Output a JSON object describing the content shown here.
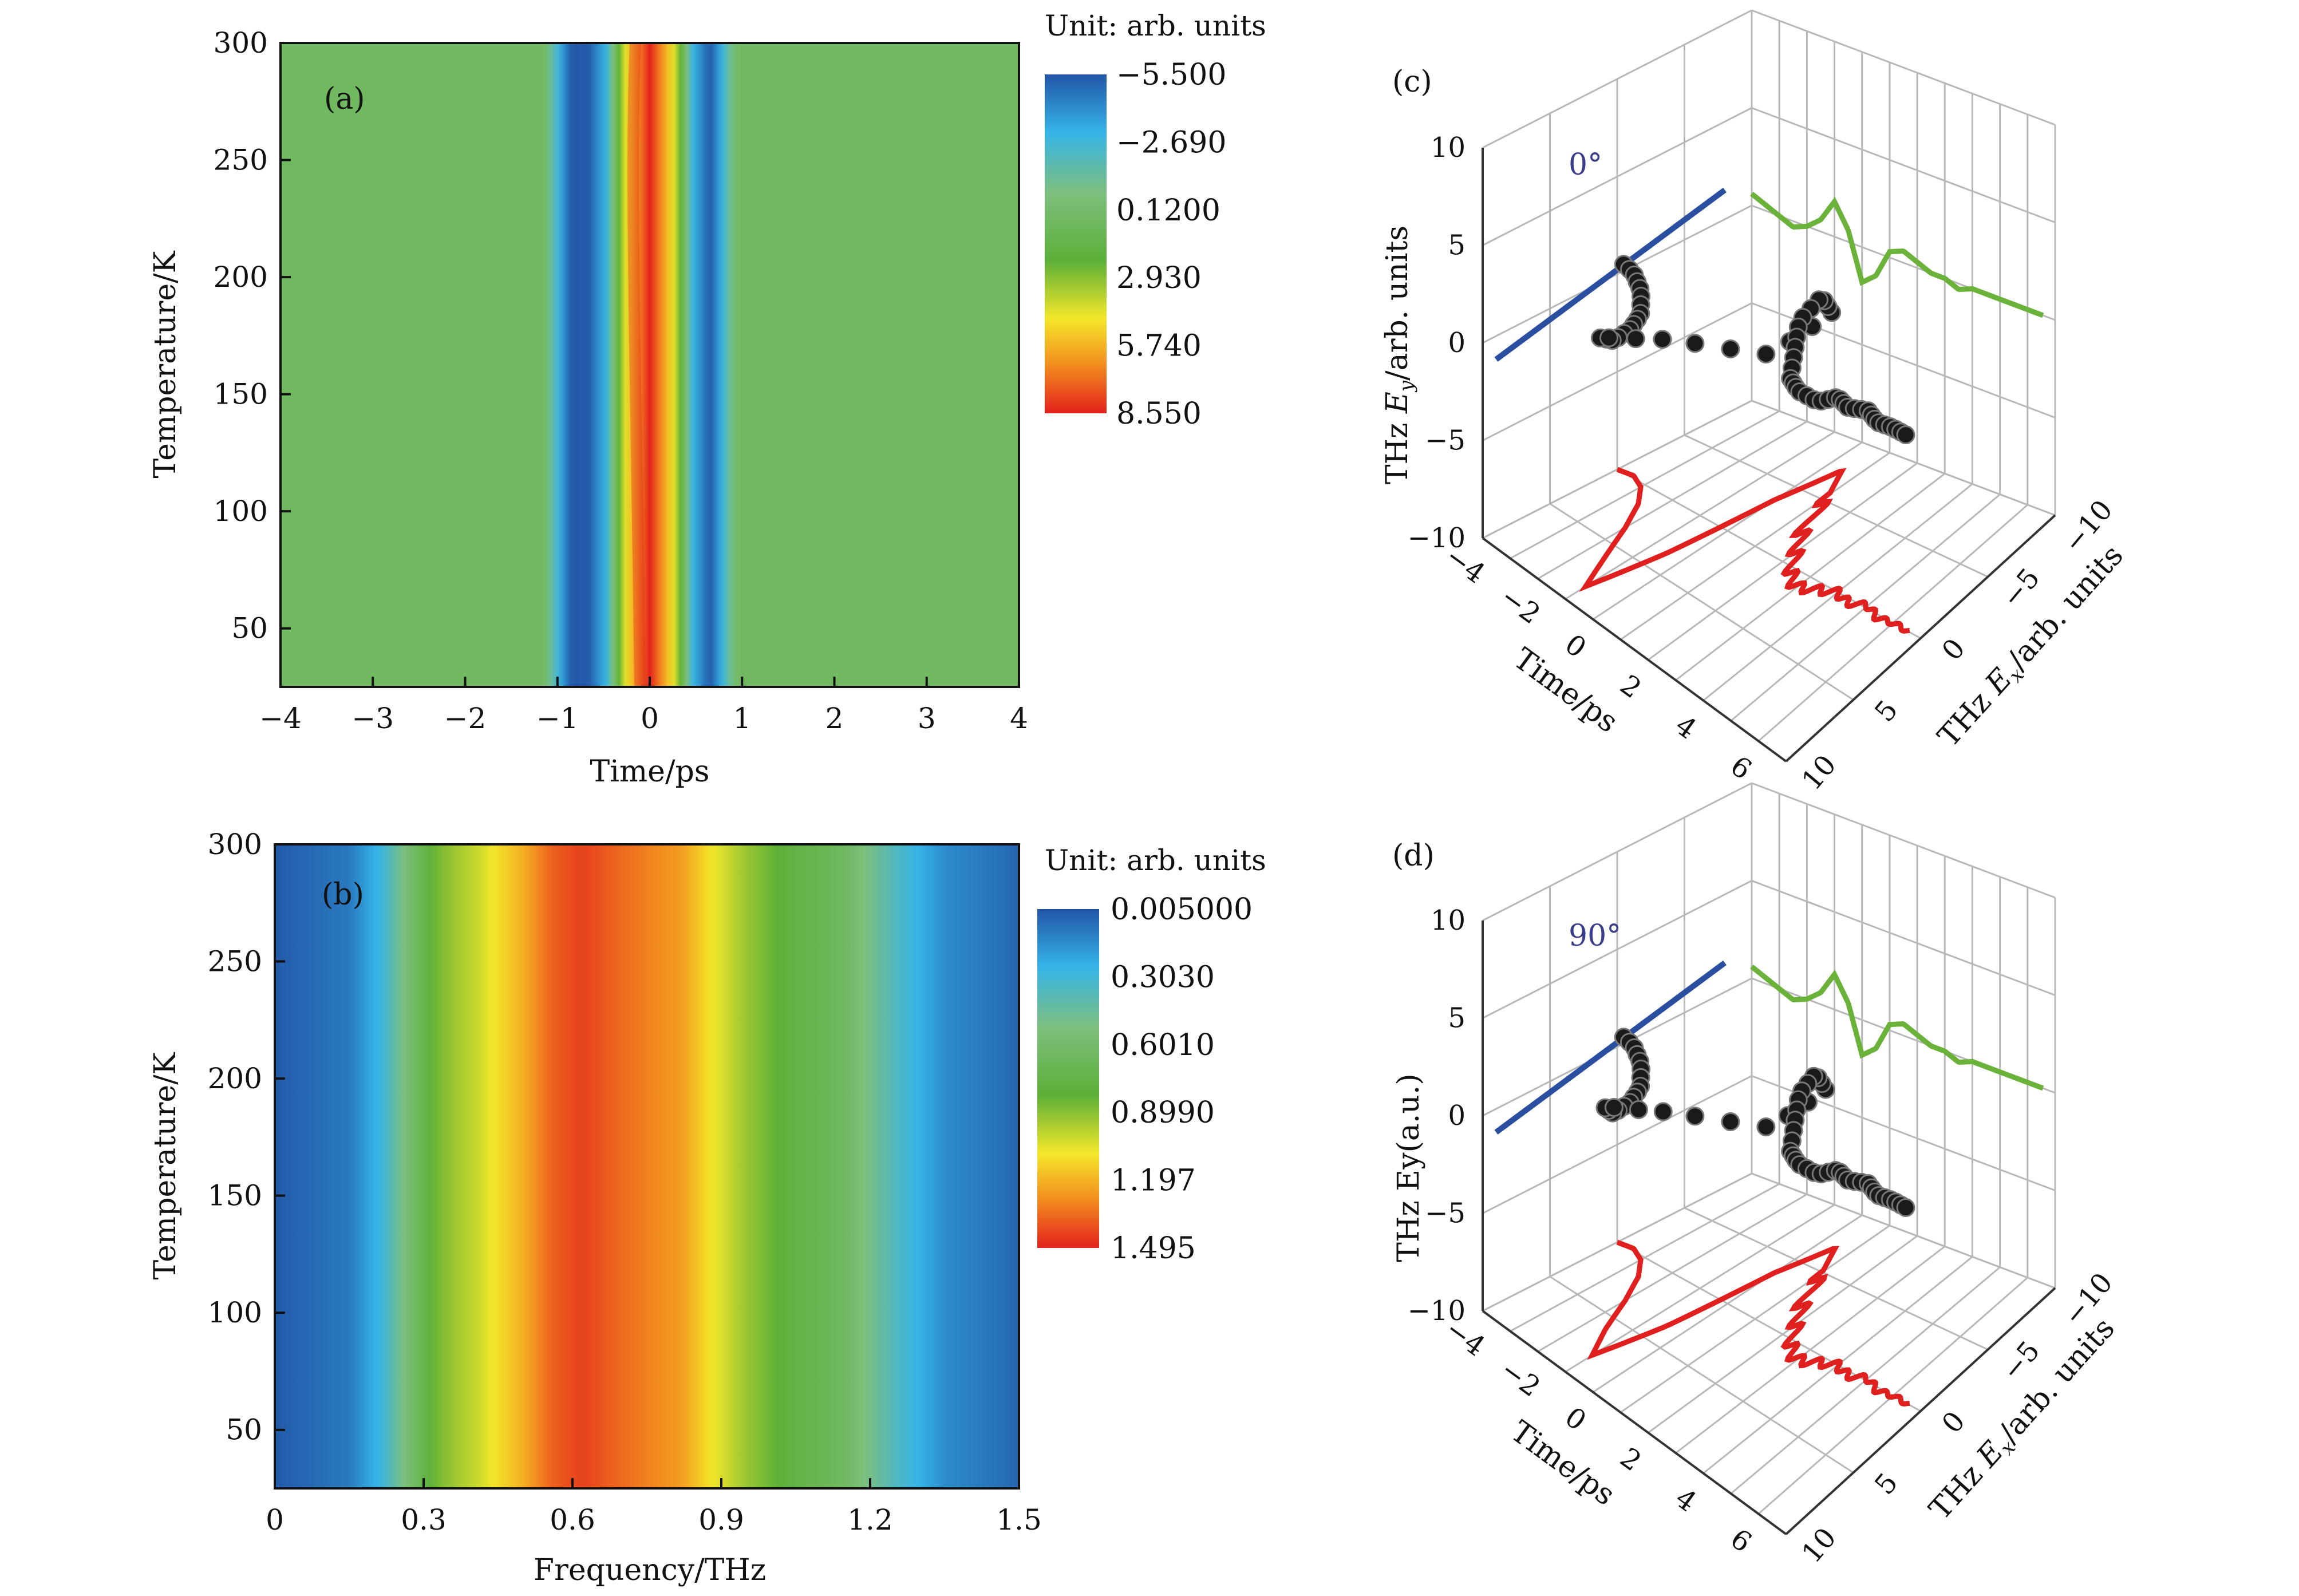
{
  "chart_data": [
    {
      "panel": "(a)",
      "type": "heatmap",
      "xlabel": "Time/ps",
      "ylabel": "Temperature/K",
      "x_ticks": [
        "−4",
        "−3",
        "−2",
        "−1",
        "0",
        "1",
        "2",
        "3",
        "4"
      ],
      "y_ticks": [
        "50",
        "100",
        "150",
        "200",
        "250",
        "300"
      ],
      "xlim": [
        -4,
        4
      ],
      "ylim": [
        25,
        300
      ],
      "colorbar_title": "Unit: arb. units",
      "colorbar_labels": [
        "−5.500",
        "−2.690",
        "0.1200",
        "2.930",
        "5.740",
        "8.550"
      ],
      "colorscale": [
        "#2255a6",
        "#35b4e8",
        "#7dbf7d",
        "#5cb038",
        "#f4e72a",
        "#f28b1e",
        "#e3211d"
      ],
      "profile_x": [
        -4,
        -1.15,
        -1.0,
        -0.85,
        -0.65,
        -0.45,
        -0.3,
        -0.15,
        0,
        0.15,
        0.3,
        0.45,
        0.65,
        0.8,
        0.95,
        1.2,
        4
      ],
      "profile_v": [
        0.12,
        0.12,
        -2.7,
        -5.5,
        -5.3,
        -2.7,
        2.9,
        5.74,
        8.55,
        5.74,
        2.9,
        -2.7,
        -5.5,
        -2.7,
        0.12,
        0.12,
        0.12
      ]
    },
    {
      "panel": "(b)",
      "type": "heatmap",
      "xlabel": "Frequency/THz",
      "ylabel": "Temperature/K",
      "x_ticks": [
        "0",
        "0.3",
        "0.6",
        "0.9",
        "1.2",
        "1.5"
      ],
      "y_ticks": [
        "50",
        "100",
        "150",
        "200",
        "250",
        "300"
      ],
      "xlim": [
        0,
        1.5
      ],
      "ylim": [
        25,
        300
      ],
      "colorbar_title": "Unit: arb. units",
      "colorbar_labels": [
        "0.005000",
        "0.3030",
        "0.6010",
        "0.8990",
        "1.197",
        "1.495"
      ],
      "colorscale": [
        "#2255a6",
        "#35b4e8",
        "#7dbf7d",
        "#5cb038",
        "#f4e72a",
        "#f28b1e",
        "#e3211d"
      ],
      "profile_x": [
        0,
        0.15,
        0.22,
        0.27,
        0.33,
        0.42,
        0.5,
        0.56,
        0.62,
        0.72,
        0.82,
        0.88,
        0.95,
        1.05,
        1.15,
        1.25,
        1.35,
        1.5
      ],
      "profile_v": [
        0.02,
        0.1,
        0.3,
        0.55,
        0.8,
        0.95,
        1.15,
        1.35,
        1.42,
        1.3,
        1.2,
        1.0,
        0.85,
        0.7,
        0.6,
        0.35,
        0.15,
        0.05
      ]
    },
    {
      "panel": "(c)",
      "type": "scatter",
      "annotation": "0°",
      "xlabel": "Time/ps",
      "ylabel": "THz E_x/arb. units",
      "zlabel": "THz E_y/arb. units",
      "time_ticks": [
        "−4",
        "−2",
        "0",
        "2",
        "4",
        "6"
      ],
      "ex_ticks": [
        "10",
        "5",
        "0",
        "−5",
        "−10"
      ],
      "ey_ticks": [
        "10",
        "5",
        "0",
        "−5",
        "−10"
      ],
      "projection_colors": [
        "#2a4fa0",
        "#6ab23a",
        "#e01f1f"
      ],
      "point_color": "#1a1a1a",
      "sample_t": [
        -4.0,
        -3.5,
        -3.0,
        -2.5,
        -2.0,
        -1.5,
        -1.0,
        -0.5,
        0.0,
        0.5,
        1.0,
        1.5,
        2.0,
        2.5,
        3.0,
        3.5,
        4.0,
        4.5,
        5.0,
        5.5,
        6.0,
        6.5
      ],
      "sample_ex": [
        0.0,
        -0.2,
        0.3,
        1.5,
        3.5,
        6.0,
        8.5,
        3.5,
        -3.5,
        -7.5,
        -5.5,
        -2.5,
        -1.0,
        0.5,
        1.0,
        0.5,
        0.0,
        0.3,
        -0.2,
        0.2,
        0.0,
        0.0
      ],
      "sample_ey": [
        0.2,
        0.1,
        0.0,
        -0.1,
        0.0,
        0.2,
        0.6,
        0.2,
        -0.6,
        -0.4,
        0.1,
        0.2,
        0.1,
        0.0,
        0.0,
        -0.1,
        0.0,
        0.0,
        0.0,
        0.0,
        0.0,
        0.0
      ]
    },
    {
      "panel": "(d)",
      "type": "scatter",
      "annotation": "90°",
      "xlabel": "Time/ps",
      "ylabel": "THz E_x/arb. units",
      "zlabel": "THz Ey(a.u.)",
      "time_ticks": [
        "−4",
        "−2",
        "0",
        "2",
        "4",
        "6"
      ],
      "ex_ticks": [
        "10",
        "5",
        "0",
        "−5",
        "−10"
      ],
      "ey_ticks": [
        "10",
        "5",
        "0",
        "−5",
        "−10"
      ],
      "projection_colors": [
        "#2a4fa0",
        "#6ab23a",
        "#e01f1f"
      ],
      "point_color": "#1a1a1a",
      "sample_t": [
        -4.0,
        -3.5,
        -3.0,
        -2.5,
        -2.0,
        -1.5,
        -1.0,
        -0.5,
        0.0,
        0.5,
        1.0,
        1.5,
        2.0,
        2.5,
        3.0,
        3.5,
        4.0,
        4.5,
        5.0,
        5.5,
        6.0,
        6.5
      ],
      "sample_ex": [
        0.0,
        -0.2,
        0.3,
        1.5,
        3.5,
        6.0,
        8.0,
        3.5,
        -3.5,
        -7.0,
        -5.0,
        -2.5,
        -1.0,
        0.5,
        1.0,
        0.5,
        0.0,
        0.3,
        -0.2,
        0.2,
        0.0,
        0.0
      ],
      "sample_ey": [
        0.2,
        0.1,
        0.0,
        -0.1,
        0.0,
        0.2,
        0.6,
        0.2,
        -0.6,
        -0.4,
        0.1,
        0.2,
        0.1,
        0.0,
        0.0,
        -0.1,
        0.0,
        0.0,
        0.0,
        0.0,
        0.0,
        0.0
      ]
    }
  ]
}
